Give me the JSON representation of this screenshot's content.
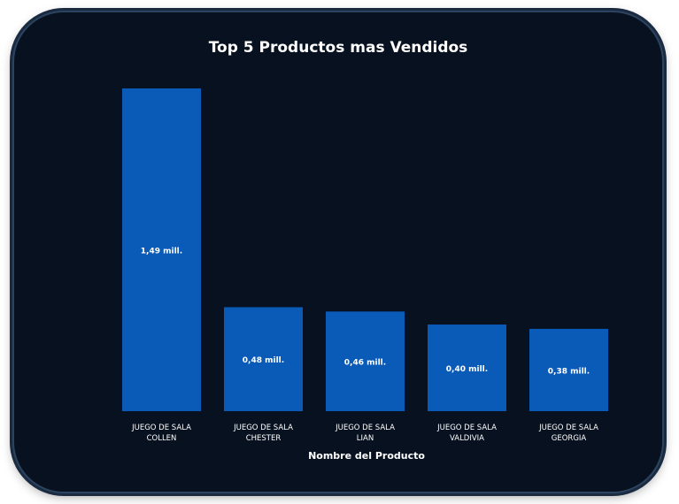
{
  "chart_data": {
    "type": "bar",
    "title": "Top 5 Productos mas Vendidos",
    "xlabel": "Nombre del Producto",
    "ylabel": "",
    "categories": [
      [
        "JUEGO DE SALA",
        "COLLEN"
      ],
      [
        "JUEGO DE SALA",
        "CHESTER"
      ],
      [
        "JUEGO DE SALA",
        "LIAN"
      ],
      [
        "JUEGO DE SALA",
        "VALDIVIA"
      ],
      [
        "JUEGO DE SALA",
        "GEORGIA"
      ]
    ],
    "values": [
      1.49,
      0.48,
      0.46,
      0.4,
      0.38
    ],
    "data_labels": [
      "1,49 mill.",
      "0,48 mill.",
      "0,46 mill.",
      "0,40 mill.",
      "0,38 mill."
    ],
    "ylim": [
      0,
      1.49
    ],
    "grid": false,
    "bar_color": "#0a5ab8",
    "background": "#07111f"
  }
}
